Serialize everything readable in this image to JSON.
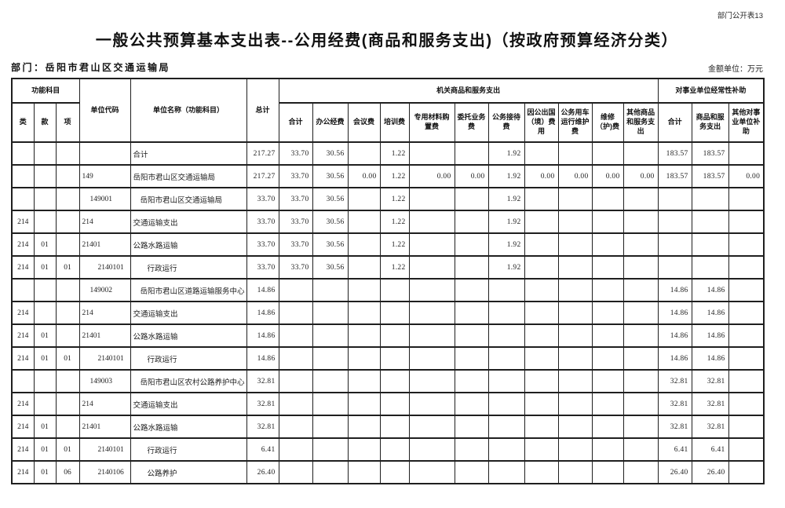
{
  "page": {
    "note": "部门公开表13",
    "title": "一般公共预算基本支出表--公用经费(商品和服务支出)（按政府预算经济分类）",
    "department_label": "部门：岳阳市君山区交通运输局",
    "unit_label": "金额单位：万元"
  },
  "table": {
    "header": {
      "func_group": "功能科目",
      "lei": "类",
      "kuan": "款",
      "xiang": "项",
      "unit_code": "单位代码",
      "unit_name": "单位名称（功能科目）",
      "grand_total": "总计",
      "svc_group": "机关商品和服务支出",
      "svc_cols": [
        "合计",
        "办公经费",
        "会议费",
        "培训费",
        "专用材料购置费",
        "委托业务费",
        "公务接待费",
        "因公出国（境）费用",
        "公务用车运行维护费",
        "维修（护)费",
        "其他商品和服务支出"
      ],
      "sub_group": "对事业单位经常性补助",
      "sub_cols": [
        "合计",
        "商品和服务支出",
        "其他对事业单位补助"
      ]
    },
    "rows": [
      {
        "code_indent": 0,
        "name_indent": 0,
        "cells": [
          "",
          "",
          "",
          "",
          "合计",
          "217.27",
          "33.70",
          "30.56",
          "",
          "1.22",
          "",
          "",
          "1.92",
          "",
          "",
          "",
          "",
          "183.57",
          "183.57",
          ""
        ]
      },
      {
        "code_indent": 0,
        "name_indent": 0,
        "cells": [
          "",
          "",
          "",
          "149",
          "岳阳市君山区交通运输局",
          "217.27",
          "33.70",
          "30.56",
          "0.00",
          "1.22",
          "0.00",
          "0.00",
          "1.92",
          "0.00",
          "0.00",
          "0.00",
          "0.00",
          "183.57",
          "183.57",
          "0.00"
        ]
      },
      {
        "code_indent": 1,
        "name_indent": 1,
        "cells": [
          "",
          "",
          "",
          "149001",
          "岳阳市君山区交通运输局",
          "33.70",
          "33.70",
          "30.56",
          "",
          "1.22",
          "",
          "",
          "1.92",
          "",
          "",
          "",
          "",
          "",
          "",
          ""
        ]
      },
      {
        "code_indent": 0,
        "name_indent": 0,
        "cells": [
          "214",
          "",
          "",
          "214",
          "交通运输支出",
          "33.70",
          "33.70",
          "30.56",
          "",
          "1.22",
          "",
          "",
          "1.92",
          "",
          "",
          "",
          "",
          "",
          "",
          ""
        ]
      },
      {
        "code_indent": 0,
        "name_indent": 0,
        "cells": [
          "214",
          "01",
          "",
          "21401",
          "公路水路运输",
          "33.70",
          "33.70",
          "30.56",
          "",
          "1.22",
          "",
          "",
          "1.92",
          "",
          "",
          "",
          "",
          "",
          "",
          ""
        ]
      },
      {
        "code_indent": 2,
        "name_indent": 2,
        "cells": [
          "214",
          "01",
          "01",
          "2140101",
          "行政运行",
          "33.70",
          "33.70",
          "30.56",
          "",
          "1.22",
          "",
          "",
          "1.92",
          "",
          "",
          "",
          "",
          "",
          "",
          ""
        ]
      },
      {
        "code_indent": 1,
        "name_indent": 1,
        "cells": [
          "",
          "",
          "",
          "149002",
          "岳阳市君山区道路运输服务中心",
          "14.86",
          "",
          "",
          "",
          "",
          "",
          "",
          "",
          "",
          "",
          "",
          "",
          "14.86",
          "14.86",
          ""
        ]
      },
      {
        "code_indent": 0,
        "name_indent": 0,
        "cells": [
          "214",
          "",
          "",
          "214",
          "交通运输支出",
          "14.86",
          "",
          "",
          "",
          "",
          "",
          "",
          "",
          "",
          "",
          "",
          "",
          "14.86",
          "14.86",
          ""
        ]
      },
      {
        "code_indent": 0,
        "name_indent": 0,
        "cells": [
          "214",
          "01",
          "",
          "21401",
          "公路水路运输",
          "14.86",
          "",
          "",
          "",
          "",
          "",
          "",
          "",
          "",
          "",
          "",
          "",
          "14.86",
          "14.86",
          ""
        ]
      },
      {
        "code_indent": 2,
        "name_indent": 2,
        "cells": [
          "214",
          "01",
          "01",
          "2140101",
          "行政运行",
          "14.86",
          "",
          "",
          "",
          "",
          "",
          "",
          "",
          "",
          "",
          "",
          "",
          "14.86",
          "14.86",
          ""
        ]
      },
      {
        "code_indent": 1,
        "name_indent": 1,
        "cells": [
          "",
          "",
          "",
          "149003",
          "岳阳市君山区农村公路养护中心",
          "32.81",
          "",
          "",
          "",
          "",
          "",
          "",
          "",
          "",
          "",
          "",
          "",
          "32.81",
          "32.81",
          ""
        ]
      },
      {
        "code_indent": 0,
        "name_indent": 0,
        "cells": [
          "214",
          "",
          "",
          "214",
          "交通运输支出",
          "32.81",
          "",
          "",
          "",
          "",
          "",
          "",
          "",
          "",
          "",
          "",
          "",
          "32.81",
          "32.81",
          ""
        ]
      },
      {
        "code_indent": 0,
        "name_indent": 0,
        "cells": [
          "214",
          "01",
          "",
          "21401",
          "公路水路运输",
          "32.81",
          "",
          "",
          "",
          "",
          "",
          "",
          "",
          "",
          "",
          "",
          "",
          "32.81",
          "32.81",
          ""
        ]
      },
      {
        "code_indent": 2,
        "name_indent": 2,
        "cells": [
          "214",
          "01",
          "01",
          "2140101",
          "行政运行",
          "6.41",
          "",
          "",
          "",
          "",
          "",
          "",
          "",
          "",
          "",
          "",
          "",
          "6.41",
          "6.41",
          ""
        ]
      },
      {
        "code_indent": 2,
        "name_indent": 2,
        "cells": [
          "214",
          "01",
          "06",
          "2140106",
          "公路养护",
          "26.40",
          "",
          "",
          "",
          "",
          "",
          "",
          "",
          "",
          "",
          "",
          "",
          "26.40",
          "26.40",
          ""
        ]
      }
    ]
  }
}
